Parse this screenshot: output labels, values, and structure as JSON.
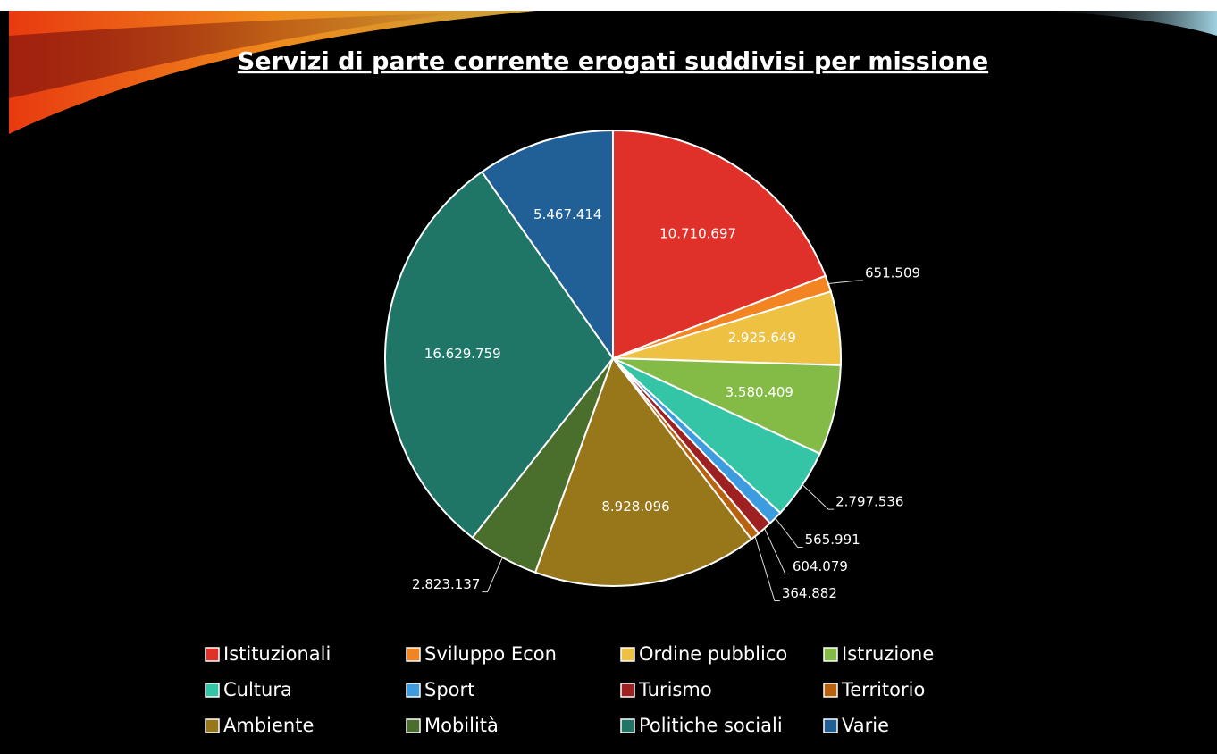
{
  "chart_data": {
    "type": "pie",
    "title": "Servizi di parte corrente erogati suddivisi per missione",
    "categories": [
      "Istituzionali",
      "Sviluppo Econ",
      "Ordine pubblico",
      "Istruzione",
      "Cultura",
      "Sport",
      "Turismo",
      "Territorio",
      "Ambiente",
      "Mobilità",
      "Politiche sociali",
      "Varie"
    ],
    "values": [
      10710697,
      651509,
      2925649,
      3580409,
      2797536,
      565991,
      604079,
      364882,
      8928096,
      2823137,
      16629759,
      5467414
    ],
    "value_labels": [
      "10.710.697",
      "651.509",
      "2.925.649",
      "3.580.409",
      "2.797.536",
      "565.991",
      "604.079",
      "364.882",
      "8.928.096",
      "2.823.137",
      "16.629.759",
      "5.467.414"
    ],
    "colors": [
      "#e0302a",
      "#f28522",
      "#eec142",
      "#84bb47",
      "#34c4a6",
      "#3d9be0",
      "#9e2020",
      "#b8620f",
      "#98761a",
      "#4a6e2c",
      "#1f7566",
      "#215f97"
    ],
    "legend": "bottom"
  }
}
